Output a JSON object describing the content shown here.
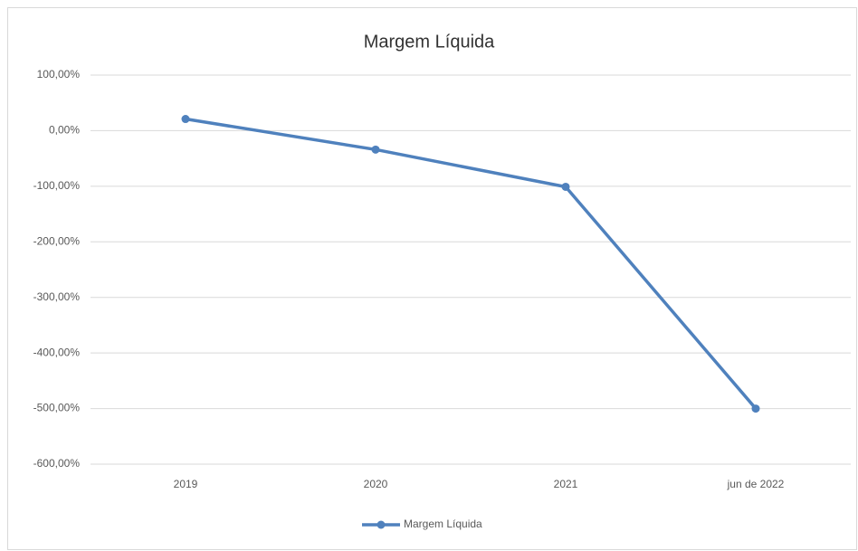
{
  "chart_data": {
    "type": "line",
    "title": "Margem Líquida",
    "categories": [
      "2019",
      "2020",
      "2021",
      "jun de 2022"
    ],
    "series": [
      {
        "name": "Margem Líquida",
        "color": "#4f81bd",
        "values": [
          21,
          -34,
          -101,
          -500
        ]
      }
    ],
    "ylim": [
      -600,
      100
    ],
    "yticks": [
      {
        "value": 100,
        "label": "100,00%"
      },
      {
        "value": 0,
        "label": "0,00%"
      },
      {
        "value": -100,
        "label": "-100,00%"
      },
      {
        "value": -200,
        "label": "-200,00%"
      },
      {
        "value": -300,
        "label": "-300,00%"
      },
      {
        "value": -400,
        "label": "-400,00%"
      },
      {
        "value": -500,
        "label": "-500,00%"
      },
      {
        "value": -600,
        "label": "-600,00%"
      }
    ],
    "grid": true,
    "legend": "bottom"
  }
}
